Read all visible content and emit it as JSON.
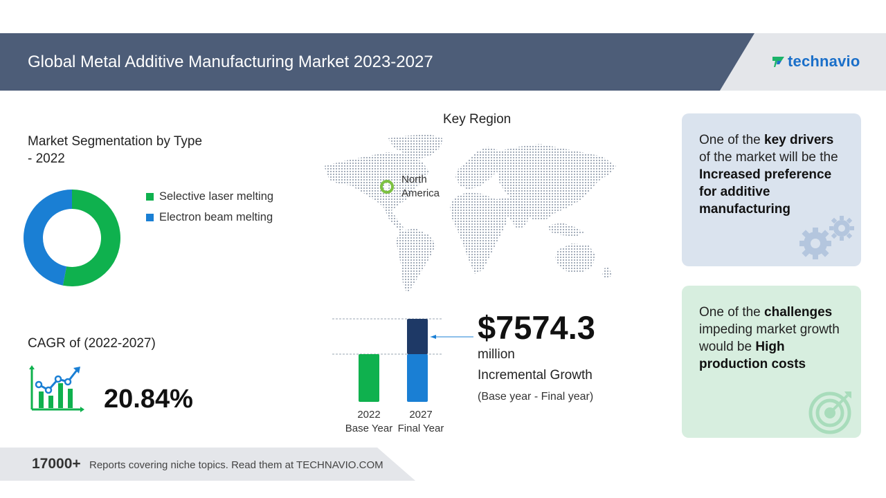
{
  "header": {
    "title": "Global Metal Additive Manufacturing Market 2023-2027",
    "logo_text": "technavio"
  },
  "segmentation": {
    "title": "Market Segmentation by Type - 2022",
    "legend": [
      {
        "label": "Selective laser melting",
        "color": "#0fb14e"
      },
      {
        "label": "Electron beam melting",
        "color": "#1a7fd4"
      }
    ]
  },
  "chart_data": [
    {
      "type": "pie",
      "title": "Market Segmentation by Type - 2022",
      "categories": [
        "Selective laser melting",
        "Electron beam melting"
      ],
      "values": [
        53,
        47
      ],
      "colors": [
        "#0fb14e",
        "#1a7fd4"
      ],
      "style": "donut"
    },
    {
      "type": "bar",
      "categories": [
        "2022",
        "2027"
      ],
      "series": [
        {
          "values": [
            69,
            69
          ],
          "colors": [
            "#0fb14e",
            "#1a7fd4"
          ]
        },
        {
          "values": [
            0,
            51
          ],
          "colors": [
            "#0fb14e",
            "#1e3966"
          ]
        }
      ],
      "stacked": true
    }
  ],
  "cagr": {
    "label": "CAGR of (2022-2027)",
    "value": "20.84%"
  },
  "key_region": {
    "title": "Key Region",
    "region": "North America",
    "marker_color": "#7dc142"
  },
  "bars": {
    "labels": [
      {
        "year": "2022",
        "caption": "Base Year"
      },
      {
        "year": "2027",
        "caption": "Final Year"
      }
    ]
  },
  "incremental": {
    "value": "$7574.3",
    "unit": "million",
    "label": "Incremental Growth",
    "note": "(Base year - Final year)"
  },
  "drivers": {
    "prefix": "One of the ",
    "bold1": "key drivers",
    "middle": " of the market will be the ",
    "bold2": "Increased preference for additive manufacturing"
  },
  "challenges": {
    "prefix": "One of the ",
    "bold1": "challenges",
    "middle": " impeding market growth would be ",
    "bold2": "High production costs"
  },
  "footer": {
    "count": "17000+",
    "text": "Reports covering niche topics. Read them at TECHNAVIO.COM"
  },
  "colors": {
    "header": "#4d5d78",
    "green": "#0fb14e",
    "blue": "#1a7fd4",
    "navy": "#1e3966",
    "driver_card": "#dae3ee",
    "challenge_card": "#d7eedf"
  }
}
